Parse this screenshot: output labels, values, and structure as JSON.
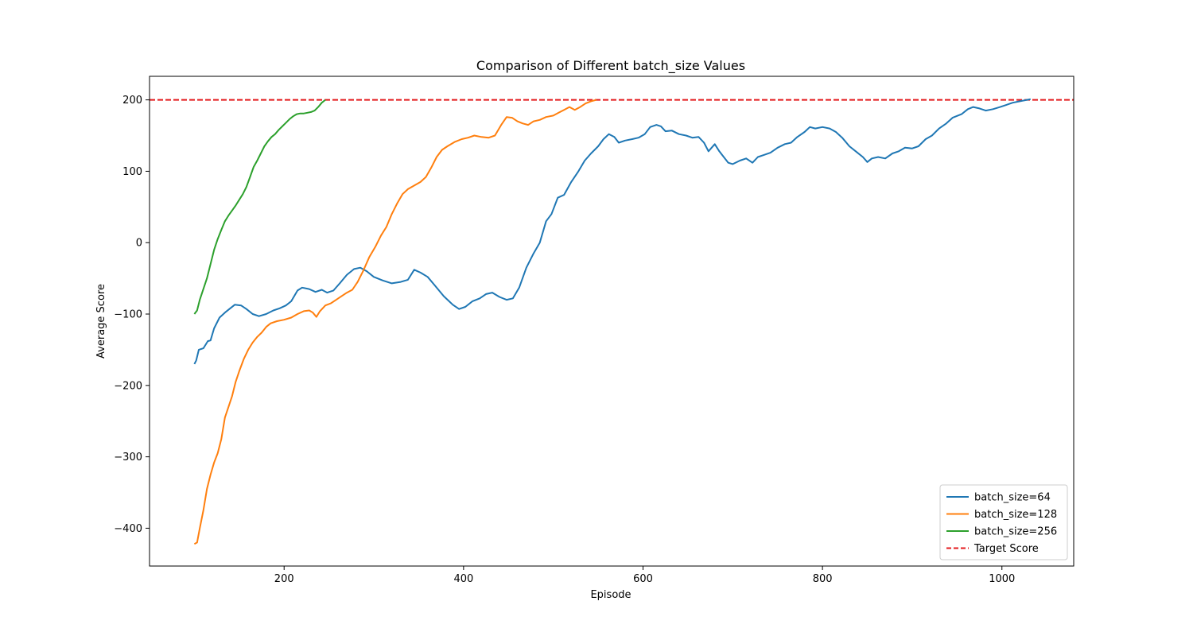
{
  "chart_data": {
    "type": "line",
    "title": "Comparison of Different batch_size Values",
    "xlabel": "Episode",
    "ylabel": "Average Score",
    "xlim": [
      50,
      1080
    ],
    "ylim": [
      -453,
      233
    ],
    "xticks": [
      200,
      400,
      600,
      800,
      1000
    ],
    "yticks": [
      -400,
      -300,
      -200,
      -100,
      0,
      100,
      200
    ],
    "xtick_labels": [
      "200",
      "400",
      "600",
      "800",
      "1000"
    ],
    "ytick_labels": [
      "−400",
      "−300",
      "−200",
      "−100",
      "0",
      "100",
      "200"
    ],
    "grid": false,
    "legend_position": "lower-right",
    "target_line": {
      "name": "Target Score",
      "y": 200,
      "color": "#e41a1c",
      "style": "dashed"
    },
    "series": [
      {
        "name": "batch_size=64",
        "color": "#1f77b4",
        "points": [
          [
            100,
            -170
          ],
          [
            102,
            -165
          ],
          [
            105,
            -150
          ],
          [
            110,
            -148
          ],
          [
            115,
            -138
          ],
          [
            118,
            -137
          ],
          [
            122,
            -120
          ],
          [
            128,
            -105
          ],
          [
            135,
            -97
          ],
          [
            140,
            -92
          ],
          [
            145,
            -87
          ],
          [
            152,
            -88
          ],
          [
            158,
            -93
          ],
          [
            165,
            -100
          ],
          [
            172,
            -103
          ],
          [
            180,
            -100
          ],
          [
            188,
            -95
          ],
          [
            195,
            -92
          ],
          [
            202,
            -88
          ],
          [
            208,
            -82
          ],
          [
            215,
            -67
          ],
          [
            220,
            -63
          ],
          [
            228,
            -65
          ],
          [
            235,
            -69
          ],
          [
            242,
            -66
          ],
          [
            248,
            -70
          ],
          [
            255,
            -67
          ],
          [
            262,
            -57
          ],
          [
            270,
            -45
          ],
          [
            278,
            -37
          ],
          [
            285,
            -35
          ],
          [
            292,
            -40
          ],
          [
            300,
            -48
          ],
          [
            310,
            -53
          ],
          [
            320,
            -57
          ],
          [
            330,
            -55
          ],
          [
            338,
            -52
          ],
          [
            345,
            -38
          ],
          [
            352,
            -42
          ],
          [
            360,
            -48
          ],
          [
            368,
            -60
          ],
          [
            378,
            -75
          ],
          [
            388,
            -87
          ],
          [
            395,
            -93
          ],
          [
            402,
            -90
          ],
          [
            410,
            -82
          ],
          [
            418,
            -78
          ],
          [
            425,
            -72
          ],
          [
            432,
            -70
          ],
          [
            440,
            -76
          ],
          [
            448,
            -80
          ],
          [
            455,
            -78
          ],
          [
            462,
            -63
          ],
          [
            470,
            -35
          ],
          [
            478,
            -15
          ],
          [
            485,
            0
          ],
          [
            492,
            30
          ],
          [
            498,
            40
          ],
          [
            505,
            63
          ],
          [
            512,
            67
          ],
          [
            520,
            85
          ],
          [
            528,
            100
          ],
          [
            535,
            115
          ],
          [
            542,
            125
          ],
          [
            550,
            135
          ],
          [
            556,
            145
          ],
          [
            562,
            152
          ],
          [
            568,
            148
          ],
          [
            573,
            140
          ],
          [
            580,
            143
          ],
          [
            588,
            145
          ],
          [
            595,
            147
          ],
          [
            602,
            152
          ],
          [
            608,
            162
          ],
          [
            615,
            165
          ],
          [
            620,
            163
          ],
          [
            625,
            156
          ],
          [
            632,
            157
          ],
          [
            640,
            152
          ],
          [
            648,
            150
          ],
          [
            655,
            147
          ],
          [
            662,
            148
          ],
          [
            668,
            140
          ],
          [
            673,
            128
          ],
          [
            680,
            138
          ],
          [
            685,
            128
          ],
          [
            690,
            120
          ],
          [
            695,
            112
          ],
          [
            700,
            110
          ],
          [
            708,
            115
          ],
          [
            715,
            118
          ],
          [
            722,
            112
          ],
          [
            728,
            120
          ],
          [
            735,
            123
          ],
          [
            742,
            126
          ],
          [
            750,
            133
          ],
          [
            758,
            138
          ],
          [
            765,
            140
          ],
          [
            772,
            148
          ],
          [
            780,
            155
          ],
          [
            786,
            162
          ],
          [
            792,
            160
          ],
          [
            800,
            162
          ],
          [
            808,
            160
          ],
          [
            815,
            155
          ],
          [
            822,
            147
          ],
          [
            830,
            135
          ],
          [
            838,
            127
          ],
          [
            845,
            120
          ],
          [
            850,
            113
          ],
          [
            855,
            118
          ],
          [
            862,
            120
          ],
          [
            870,
            118
          ],
          [
            878,
            125
          ],
          [
            885,
            128
          ],
          [
            892,
            133
          ],
          [
            900,
            132
          ],
          [
            907,
            135
          ],
          [
            915,
            145
          ],
          [
            922,
            150
          ],
          [
            930,
            160
          ],
          [
            938,
            167
          ],
          [
            945,
            175
          ],
          [
            955,
            180
          ],
          [
            962,
            187
          ],
          [
            968,
            190
          ],
          [
            975,
            188
          ],
          [
            982,
            185
          ],
          [
            990,
            187
          ],
          [
            998,
            190
          ],
          [
            1005,
            193
          ],
          [
            1012,
            196
          ],
          [
            1020,
            198
          ],
          [
            1028,
            200
          ],
          [
            1032,
            201
          ]
        ]
      },
      {
        "name": "batch_size=128",
        "color": "#ff7f0e",
        "points": [
          [
            100,
            -422
          ],
          [
            103,
            -420
          ],
          [
            106,
            -400
          ],
          [
            110,
            -375
          ],
          [
            114,
            -345
          ],
          [
            118,
            -325
          ],
          [
            122,
            -308
          ],
          [
            126,
            -295
          ],
          [
            130,
            -275
          ],
          [
            134,
            -245
          ],
          [
            138,
            -230
          ],
          [
            142,
            -215
          ],
          [
            146,
            -195
          ],
          [
            150,
            -180
          ],
          [
            155,
            -163
          ],
          [
            160,
            -150
          ],
          [
            165,
            -140
          ],
          [
            170,
            -132
          ],
          [
            175,
            -126
          ],
          [
            180,
            -118
          ],
          [
            185,
            -113
          ],
          [
            192,
            -110
          ],
          [
            200,
            -108
          ],
          [
            208,
            -105
          ],
          [
            215,
            -100
          ],
          [
            222,
            -96
          ],
          [
            228,
            -95
          ],
          [
            232,
            -98
          ],
          [
            236,
            -104
          ],
          [
            240,
            -96
          ],
          [
            246,
            -88
          ],
          [
            252,
            -85
          ],
          [
            258,
            -80
          ],
          [
            264,
            -75
          ],
          [
            270,
            -70
          ],
          [
            276,
            -66
          ],
          [
            282,
            -55
          ],
          [
            288,
            -40
          ],
          [
            295,
            -20
          ],
          [
            302,
            -5
          ],
          [
            308,
            10
          ],
          [
            314,
            22
          ],
          [
            320,
            40
          ],
          [
            326,
            55
          ],
          [
            332,
            68
          ],
          [
            338,
            75
          ],
          [
            345,
            80
          ],
          [
            352,
            85
          ],
          [
            358,
            92
          ],
          [
            364,
            105
          ],
          [
            370,
            120
          ],
          [
            376,
            130
          ],
          [
            382,
            135
          ],
          [
            390,
            141
          ],
          [
            398,
            145
          ],
          [
            405,
            147
          ],
          [
            412,
            150
          ],
          [
            420,
            148
          ],
          [
            428,
            147
          ],
          [
            435,
            150
          ],
          [
            442,
            165
          ],
          [
            448,
            176
          ],
          [
            454,
            175
          ],
          [
            460,
            170
          ],
          [
            466,
            167
          ],
          [
            472,
            165
          ],
          [
            478,
            170
          ],
          [
            485,
            172
          ],
          [
            492,
            176
          ],
          [
            500,
            178
          ],
          [
            506,
            182
          ],
          [
            512,
            186
          ],
          [
            518,
            190
          ],
          [
            524,
            186
          ],
          [
            530,
            190
          ],
          [
            536,
            195
          ],
          [
            542,
            198
          ],
          [
            548,
            200
          ]
        ]
      },
      {
        "name": "batch_size=256",
        "color": "#2ca02c",
        "points": [
          [
            100,
            -100
          ],
          [
            103,
            -95
          ],
          [
            106,
            -80
          ],
          [
            110,
            -65
          ],
          [
            114,
            -50
          ],
          [
            118,
            -30
          ],
          [
            122,
            -10
          ],
          [
            126,
            5
          ],
          [
            130,
            18
          ],
          [
            134,
            30
          ],
          [
            138,
            38
          ],
          [
            142,
            45
          ],
          [
            146,
            52
          ],
          [
            150,
            60
          ],
          [
            154,
            68
          ],
          [
            158,
            78
          ],
          [
            162,
            92
          ],
          [
            166,
            106
          ],
          [
            170,
            115
          ],
          [
            174,
            125
          ],
          [
            178,
            135
          ],
          [
            182,
            142
          ],
          [
            186,
            148
          ],
          [
            190,
            152
          ],
          [
            194,
            158
          ],
          [
            198,
            163
          ],
          [
            202,
            168
          ],
          [
            206,
            173
          ],
          [
            210,
            177
          ],
          [
            214,
            180
          ],
          [
            218,
            181
          ],
          [
            222,
            181
          ],
          [
            226,
            182
          ],
          [
            230,
            183
          ],
          [
            234,
            185
          ],
          [
            238,
            190
          ],
          [
            242,
            196
          ],
          [
            246,
            200
          ]
        ]
      }
    ]
  }
}
